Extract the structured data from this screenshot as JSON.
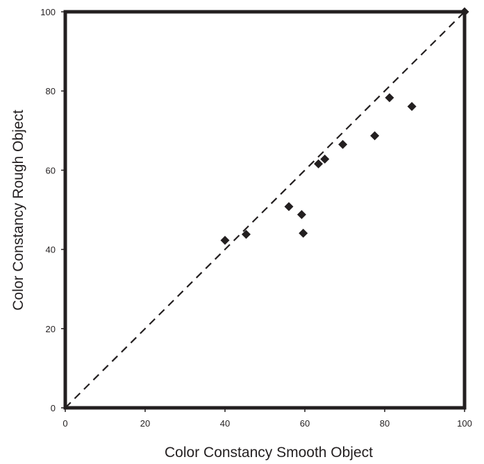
{
  "chart_data": {
    "type": "scatter",
    "title": "",
    "xlabel": "Color Constancy Smooth Object",
    "ylabel": "Color Constancy Rough Object",
    "xlim": [
      0,
      100
    ],
    "ylim": [
      0,
      100
    ],
    "xticks": [
      0,
      20,
      40,
      60,
      80,
      100
    ],
    "yticks": [
      0,
      20,
      40,
      60,
      80,
      100
    ],
    "x_tick_labels": [
      "0",
      "20",
      "40",
      "60",
      "80",
      "100"
    ],
    "y_tick_labels": [
      "0",
      "20",
      "40",
      "60",
      "80",
      "100"
    ],
    "grid": false,
    "legend": "none",
    "marker": "diamond",
    "marker_color": "#231f20",
    "reference_line": {
      "style": "dashed",
      "from": [
        0,
        0
      ],
      "to": [
        100,
        100
      ],
      "color": "#231f20"
    },
    "series": [
      {
        "points": [
          {
            "x": 40.0,
            "y": 42.3
          },
          {
            "x": 45.3,
            "y": 43.8
          },
          {
            "x": 56.0,
            "y": 50.8
          },
          {
            "x": 59.2,
            "y": 48.8
          },
          {
            "x": 59.6,
            "y": 44.1
          },
          {
            "x": 63.4,
            "y": 61.6
          },
          {
            "x": 65.0,
            "y": 62.8
          },
          {
            "x": 69.5,
            "y": 66.5
          },
          {
            "x": 77.5,
            "y": 68.7
          },
          {
            "x": 81.2,
            "y": 78.3
          },
          {
            "x": 86.8,
            "y": 76.1
          },
          {
            "x": 100.0,
            "y": 100.0
          }
        ]
      }
    ]
  }
}
